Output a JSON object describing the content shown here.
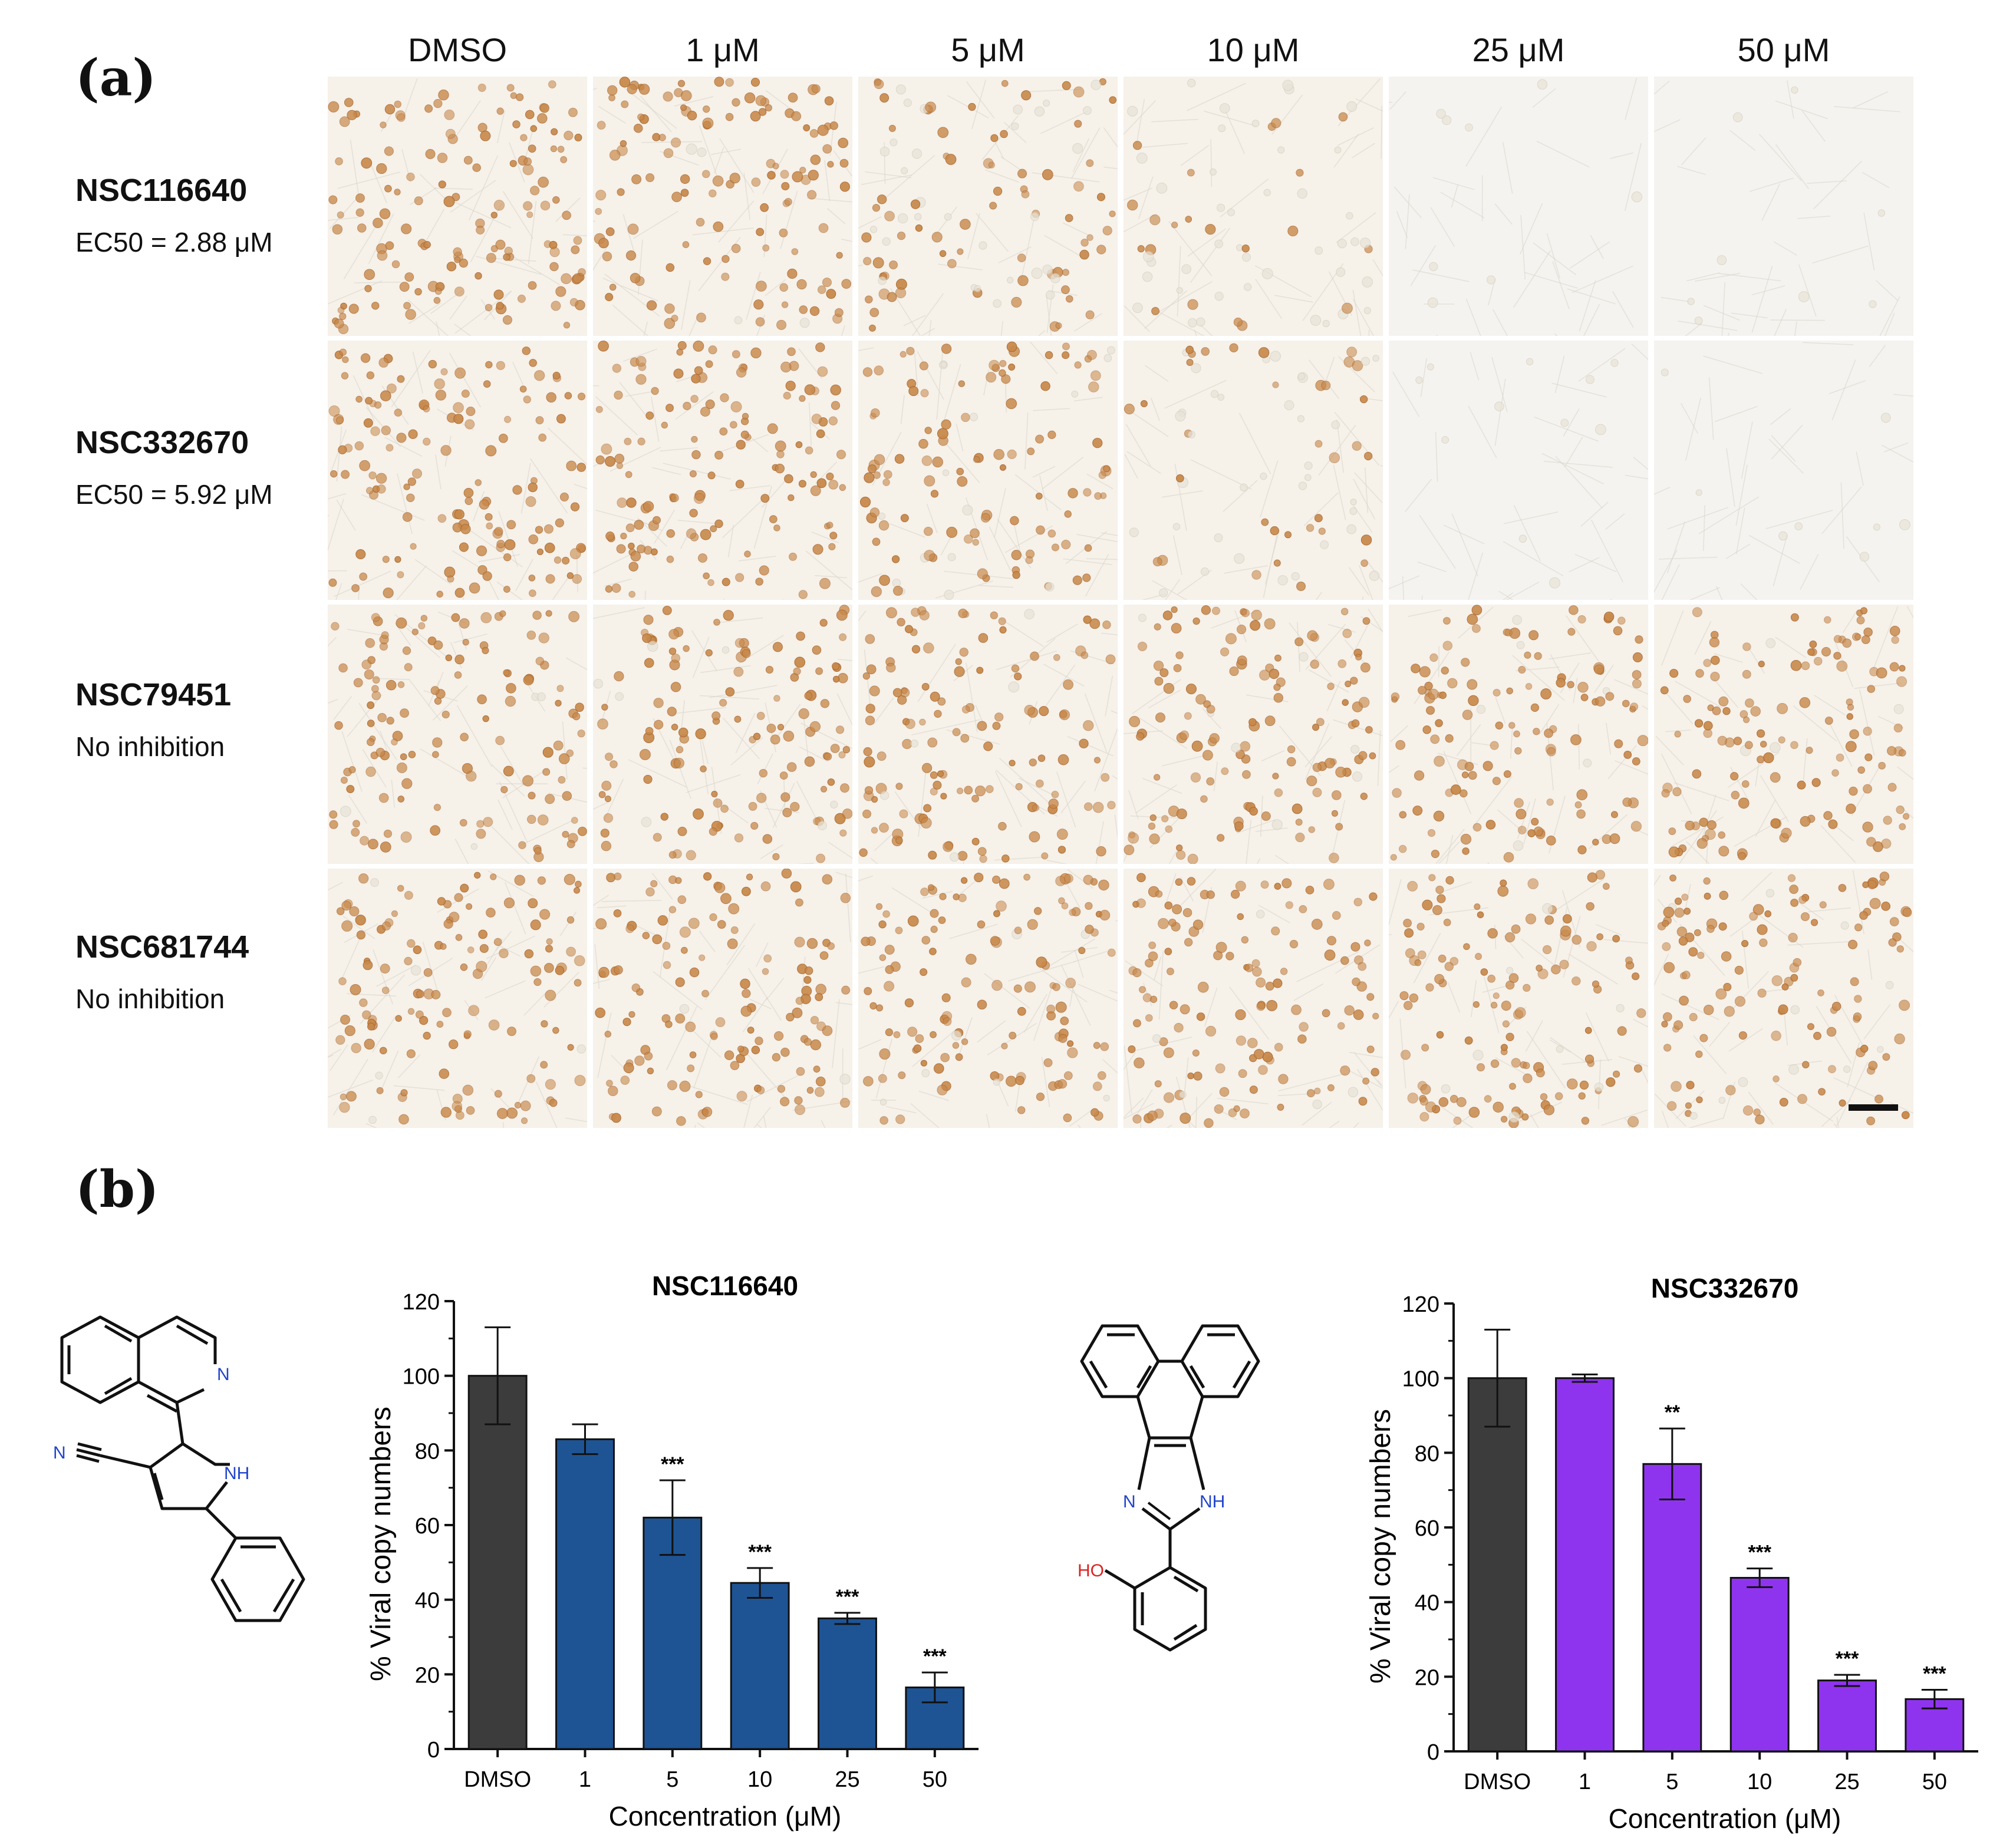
{
  "panels": {
    "a": "(a)",
    "b": "(b)"
  },
  "grid": {
    "columns": [
      "DMSO",
      "1 μM",
      "5 μM",
      "10 μM",
      "25 μM",
      "50 μM"
    ],
    "rows": [
      {
        "name": "NSC116640",
        "note": "EC50 = 2.88 μM",
        "stain_intensity": [
          1.0,
          0.95,
          0.75,
          0.45,
          0.04,
          0.04
        ]
      },
      {
        "name": "NSC332670",
        "note": "EC50 = 5.92 μM",
        "stain_intensity": [
          1.0,
          1.0,
          0.85,
          0.5,
          0.08,
          0.06
        ]
      },
      {
        "name": "NSC79451",
        "note": "No inhibition",
        "stain_intensity": [
          0.95,
          0.95,
          0.95,
          0.95,
          0.95,
          0.95
        ]
      },
      {
        "name": "NSC681744",
        "note": "No inhibition",
        "stain_intensity": [
          0.95,
          0.95,
          0.95,
          0.95,
          0.95,
          0.95
        ]
      }
    ],
    "stain_color": "#c8894a",
    "background_color": "#f6f1e9"
  },
  "molecules": [
    {
      "atom_labels": [
        "N",
        "N",
        "NH"
      ],
      "label_colors": [
        "#2244cc",
        "#2244cc",
        "#2244cc"
      ]
    },
    {
      "atom_labels": [
        "N",
        "NH",
        "HO"
      ],
      "label_colors": [
        "#2244cc",
        "#2244cc",
        "#dd2222"
      ]
    }
  ],
  "chart_data": [
    {
      "type": "bar",
      "title": "NSC116640",
      "xlabel": "Concentration (μM)",
      "ylabel": "% Viral copy numbers",
      "categories": [
        "DMSO",
        "1",
        "5",
        "10",
        "25",
        "50"
      ],
      "values": [
        100,
        83,
        62,
        44.5,
        35,
        16.5
      ],
      "errors": [
        13,
        4,
        10,
        4,
        1.5,
        4
      ],
      "significance": [
        "",
        "",
        "***",
        "***",
        "***",
        "***"
      ],
      "colors": [
        "#3c3c3c",
        "#1e5494",
        "#1e5494",
        "#1e5494",
        "#1e5494",
        "#1e5494"
      ],
      "ylim": [
        0,
        120
      ],
      "yticks": [
        0,
        20,
        40,
        60,
        80,
        100,
        120
      ]
    },
    {
      "type": "bar",
      "title": "NSC332670",
      "xlabel": "Concentration (μM)",
      "ylabel": "% Viral copy numbers",
      "categories": [
        "DMSO",
        "1",
        "5",
        "10",
        "25",
        "50"
      ],
      "values": [
        100,
        100,
        77,
        46.5,
        19,
        14
      ],
      "errors": [
        13,
        1,
        9.5,
        2.5,
        1.5,
        2.5
      ],
      "significance": [
        "",
        "",
        "**",
        "***",
        "***",
        "***"
      ],
      "colors": [
        "#3c3c3c",
        "#8f34ee",
        "#8f34ee",
        "#8f34ee",
        "#8f34ee",
        "#8f34ee"
      ],
      "ylim": [
        0,
        120
      ],
      "yticks": [
        0,
        20,
        40,
        60,
        80,
        100,
        120
      ]
    }
  ]
}
